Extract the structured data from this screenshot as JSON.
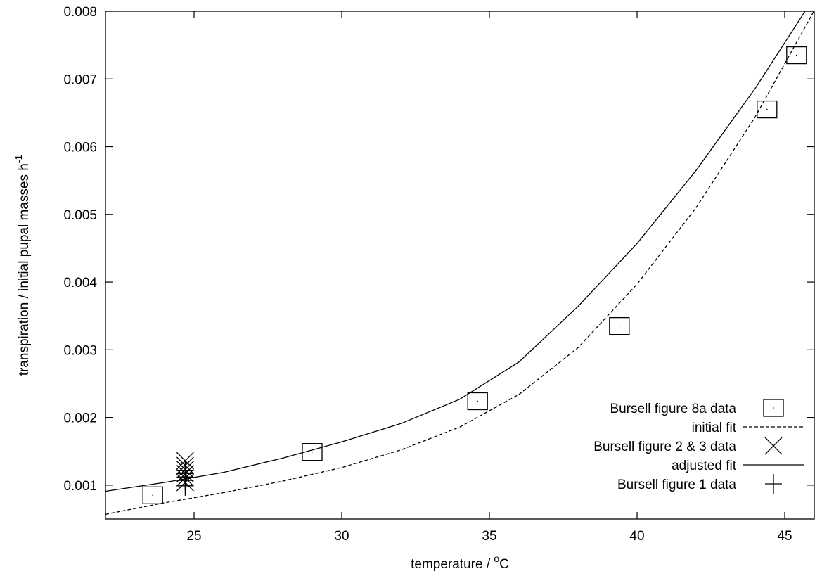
{
  "chart_data": {
    "type": "scatter",
    "title": "",
    "xlabel": {
      "text": "temperature / ",
      "sup": "o",
      "suffix": "C"
    },
    "ylabel": {
      "text": "transpiration / initial pupal masses h",
      "sup": "-1"
    },
    "xlim": [
      22,
      46
    ],
    "ylim": [
      0.0005,
      0.008
    ],
    "x_ticks": [
      25,
      30,
      35,
      40,
      45
    ],
    "y_ticks": [
      0.001,
      0.002,
      0.003,
      0.004,
      0.005,
      0.006,
      0.007,
      0.008
    ],
    "x_tick_labels": [
      "25",
      "30",
      "35",
      "40",
      "45"
    ],
    "y_tick_labels": [
      "0.001",
      "0.002",
      "0.003",
      "0.004",
      "0.005",
      "0.006",
      "0.007",
      "0.008"
    ],
    "grid": false,
    "legend_position": "bottom-right",
    "series": [
      {
        "name": "Bursell figure 8a data",
        "kind": "points",
        "marker": "square",
        "x": [
          23.6,
          29.0,
          34.6,
          39.4,
          44.4,
          45.4
        ],
        "y": [
          0.00085,
          0.00149,
          0.00224,
          0.00335,
          0.00655,
          0.00735
        ]
      },
      {
        "name": "initial fit",
        "kind": "line",
        "dash": "dashed",
        "x": [
          22,
          24,
          26,
          28,
          30,
          32,
          34,
          36,
          38,
          40,
          42,
          44,
          46
        ],
        "y": [
          0.00057,
          0.00074,
          0.00089,
          0.00106,
          0.00126,
          0.00152,
          0.00186,
          0.00234,
          0.00303,
          0.00397,
          0.0051,
          0.00644,
          0.00801
        ]
      },
      {
        "name": "Bursell figure 2 & 3 data",
        "kind": "points",
        "marker": "x",
        "x": [
          24.7,
          24.7,
          24.7,
          24.7,
          24.7,
          24.7
        ],
        "y": [
          0.00136,
          0.00129,
          0.00123,
          0.00117,
          0.00111,
          0.00104
        ]
      },
      {
        "name": "adjusted fit",
        "kind": "line",
        "dash": "solid",
        "x": [
          22,
          24,
          26,
          28,
          30,
          32,
          34,
          36,
          38,
          40,
          42,
          44,
          46
        ],
        "y": [
          0.00091,
          0.00104,
          0.00119,
          0.0014,
          0.00164,
          0.00191,
          0.00227,
          0.00282,
          0.00364,
          0.00457,
          0.00565,
          0.00686,
          0.00821
        ]
      },
      {
        "name": "Bursell figure 1 data",
        "kind": "points",
        "marker": "plus",
        "x": [
          24.7,
          24.7,
          24.7,
          24.7,
          24.7
        ],
        "y": [
          0.00122,
          0.00117,
          0.00112,
          0.00107,
          0.00099
        ]
      }
    ]
  }
}
